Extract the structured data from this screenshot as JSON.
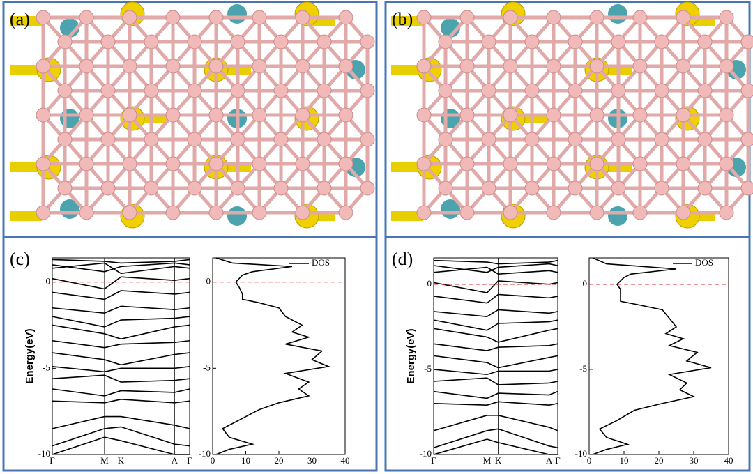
{
  "panels": [
    {
      "label": "(a)"
    },
    {
      "label": "(b)"
    }
  ],
  "chart_data": [
    {
      "type": "band_dos",
      "label": "(c)",
      "y_label": "Energy(eV)",
      "kpoints": [
        "Γ",
        "M",
        "K",
        "A",
        "Γ"
      ],
      "kpath": [
        0,
        0.38,
        0.5,
        0.89,
        1
      ],
      "ylim": [
        -10,
        1.4
      ],
      "yticks": [
        0,
        -5,
        -10
      ],
      "fermi_level": 0,
      "bands": [
        [
          1.3,
          1.2,
          1.1,
          1.2,
          1.3
        ],
        [
          1.0,
          0.6,
          0.9,
          1.1,
          1.0
        ],
        [
          0.8,
          1.1,
          0.5,
          0.9,
          0.8
        ],
        [
          0.2,
          -0.4,
          0.3,
          0.1,
          0.2
        ],
        [
          -0.6,
          -1.0,
          -0.5,
          -0.7,
          -0.6
        ],
        [
          -1.5,
          -1.8,
          -1.4,
          -1.6,
          -1.5
        ],
        [
          -2.0,
          -2.6,
          -2.2,
          -2.1,
          -2.0
        ],
        [
          -2.5,
          -3.0,
          -3.3,
          -2.6,
          -2.5
        ],
        [
          -3.4,
          -3.8,
          -3.6,
          -3.5,
          -3.4
        ],
        [
          -4.1,
          -4.5,
          -4.8,
          -4.2,
          -4.1
        ],
        [
          -4.9,
          -5.2,
          -5.0,
          -5.0,
          -4.9
        ],
        [
          -5.6,
          -5.4,
          -5.8,
          -5.7,
          -5.6
        ],
        [
          -6.2,
          -6.6,
          -6.3,
          -6.4,
          -6.2
        ],
        [
          -6.9,
          -7.0,
          -6.8,
          -7.0,
          -6.9
        ],
        [
          -8.5,
          -7.8,
          -7.8,
          -8.3,
          -8.5
        ],
        [
          -10,
          -9.0,
          -9.2,
          -10,
          -10
        ],
        [
          -9.5,
          -8.5,
          -8.4,
          -9.4,
          -9.5
        ]
      ],
      "dos": {
        "name": "DOS",
        "xlim": [
          0,
          40
        ],
        "xticks": [
          0,
          10,
          20,
          30,
          40
        ],
        "energy": [
          1.4,
          1.1,
          0.9,
          0.6,
          0.4,
          0.0,
          -0.3,
          -0.7,
          -1.0,
          -1.2,
          -1.5,
          -2.0,
          -2.5,
          -2.9,
          -3.2,
          -3.6,
          -4.0,
          -4.5,
          -4.9,
          -5.3,
          -5.8,
          -6.2,
          -6.6,
          -7.0,
          -7.4,
          -8.0,
          -8.5,
          -9.0,
          -9.4,
          -9.7,
          -10
        ],
        "values": [
          1,
          6,
          24,
          12,
          9,
          7,
          8,
          9,
          9,
          14,
          20,
          22,
          27,
          24,
          29,
          22,
          33,
          30,
          35,
          22,
          29,
          26,
          29,
          20,
          14,
          8,
          3,
          5,
          12,
          5,
          1
        ]
      }
    },
    {
      "type": "band_dos",
      "label": "(d)",
      "y_label": "Energy(eV)",
      "kpoints": [
        "Γ",
        "M",
        "K",
        "A",
        "Γ"
      ],
      "kpath": [
        0,
        0.43,
        0.52,
        0.93,
        1
      ],
      "ylim": [
        -10,
        1.55
      ],
      "yticks": [
        0,
        -5,
        -10
      ],
      "fermi_level": 0,
      "bands": [
        [
          1.4,
          1.3,
          1.2,
          1.3,
          1.4
        ],
        [
          1.1,
          0.7,
          1.0,
          1.2,
          1.1
        ],
        [
          0.7,
          1.0,
          0.6,
          0.8,
          0.7
        ],
        [
          0.1,
          -0.5,
          0.2,
          0.0,
          0.1
        ],
        [
          -0.7,
          -1.1,
          -0.6,
          -0.8,
          -0.7
        ],
        [
          -1.6,
          -1.9,
          -1.5,
          -1.7,
          -1.6
        ],
        [
          -2.1,
          -2.7,
          -2.3,
          -2.2,
          -2.1
        ],
        [
          -2.6,
          -3.1,
          -3.4,
          -2.7,
          -2.6
        ],
        [
          -3.5,
          -3.9,
          -3.7,
          -3.6,
          -3.5
        ],
        [
          -4.2,
          -4.6,
          -4.9,
          -4.3,
          -4.2
        ],
        [
          -5.0,
          -5.3,
          -5.1,
          -5.1,
          -5.0
        ],
        [
          -5.7,
          -5.5,
          -5.9,
          -5.8,
          -5.7
        ],
        [
          -6.3,
          -6.7,
          -6.4,
          -6.5,
          -6.3
        ],
        [
          -7.0,
          -7.1,
          -6.9,
          -7.1,
          -7.0
        ],
        [
          -8.6,
          -7.7,
          -7.7,
          -8.4,
          -8.6
        ],
        [
          -10,
          -9.1,
          -9.3,
          -10,
          -10
        ],
        [
          -9.6,
          -8.6,
          -8.5,
          -9.5,
          -9.6
        ]
      ],
      "dos": {
        "name": "DOS",
        "xlim": [
          0,
          40
        ],
        "xticks": [
          0,
          10,
          20,
          30,
          40
        ],
        "energy": [
          1.55,
          1.2,
          0.9,
          0.6,
          0.4,
          0.0,
          -0.3,
          -0.7,
          -1.0,
          -1.2,
          -1.5,
          -2.0,
          -2.5,
          -2.9,
          -3.2,
          -3.6,
          -4.0,
          -4.5,
          -4.9,
          -5.3,
          -5.8,
          -6.2,
          -6.6,
          -7.0,
          -7.4,
          -8.0,
          -8.5,
          -9.0,
          -9.4,
          -9.7,
          -10
        ],
        "values": [
          1,
          5,
          25,
          12,
          10,
          8,
          9,
          9,
          9,
          14,
          21,
          23,
          25,
          22,
          27,
          23,
          31,
          28,
          35,
          23,
          28,
          26,
          30,
          21,
          13,
          8,
          3,
          5,
          11,
          5,
          1
        ]
      }
    }
  ]
}
